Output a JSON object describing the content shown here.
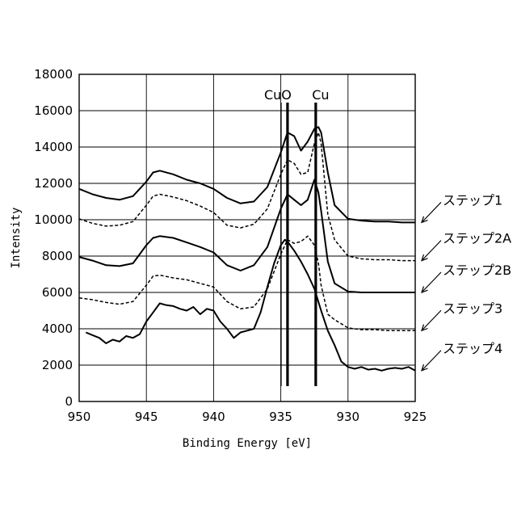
{
  "chart_data": {
    "type": "line",
    "xlabel": "Binding Energy [eV]",
    "ylabel": "Intensity",
    "xlim": [
      950,
      925
    ],
    "ylim": [
      0,
      18000
    ],
    "x_reversed": true,
    "grid": true,
    "xticks": [
      "950",
      "945",
      "940",
      "935",
      "930",
      "925"
    ],
    "yticks": [
      "0",
      "2000",
      "4000",
      "6000",
      "8000",
      "10000",
      "12000",
      "14000",
      "16000",
      "18000"
    ],
    "reference_lines": [
      {
        "label": "CuO",
        "x": 934.5
      },
      {
        "label": "Cu",
        "x": 932.4
      }
    ],
    "legend_placement": "right, with arrows",
    "series": [
      {
        "name": "ステップ1",
        "style": "solid",
        "x": [
          950,
          949,
          948,
          947,
          946,
          945,
          944.5,
          944,
          943,
          942,
          941,
          940,
          939,
          938,
          937,
          936,
          935,
          934.5,
          934,
          933.5,
          933,
          932.5,
          932.2,
          932,
          931.5,
          931,
          930,
          929,
          928,
          927,
          926,
          925
        ],
        "y": [
          11700,
          11400,
          11200,
          11100,
          11300,
          12100,
          12600,
          12700,
          12500,
          12200,
          12000,
          11700,
          11200,
          10900,
          11000,
          11800,
          13700,
          14800,
          14600,
          13800,
          14300,
          15000,
          15100,
          14800,
          12600,
          10800,
          10050,
          9950,
          9900,
          9900,
          9850,
          9850
        ]
      },
      {
        "name": "ステップ2A",
        "style": "dashed",
        "x": [
          950,
          949,
          948,
          947,
          946,
          945,
          944.5,
          944,
          943,
          942,
          941,
          940,
          939,
          938,
          937,
          936,
          935,
          934.5,
          934,
          933.5,
          933,
          932.5,
          932.2,
          932,
          931.5,
          931,
          930,
          929,
          928,
          927,
          926,
          925
        ],
        "y": [
          10050,
          9800,
          9650,
          9700,
          9900,
          10800,
          11300,
          11400,
          11250,
          11050,
          10750,
          10400,
          9700,
          9550,
          9750,
          10600,
          12500,
          13300,
          13100,
          12500,
          12600,
          14200,
          14800,
          14200,
          10300,
          8900,
          8000,
          7850,
          7800,
          7800,
          7750,
          7750
        ]
      },
      {
        "name": "ステップ2B",
        "style": "solid",
        "x": [
          950,
          949,
          948,
          947,
          946,
          945,
          944.5,
          944,
          943,
          942,
          941,
          940,
          939,
          938,
          937,
          936,
          935,
          934.5,
          934,
          933.5,
          933,
          932.5,
          932.2,
          932,
          931.5,
          931,
          930,
          929,
          928,
          927,
          926,
          925
        ],
        "y": [
          7950,
          7750,
          7500,
          7450,
          7600,
          8600,
          9000,
          9100,
          9000,
          8750,
          8500,
          8200,
          7500,
          7200,
          7500,
          8500,
          10600,
          11400,
          11100,
          10800,
          11100,
          12200,
          11500,
          10500,
          7700,
          6500,
          6050,
          6000,
          6000,
          6000,
          6000,
          6000
        ]
      },
      {
        "name": "ステップ3",
        "style": "dashed",
        "x": [
          950,
          949,
          948,
          947,
          946,
          945,
          944.5,
          944,
          943,
          942,
          941,
          940,
          939,
          938,
          937,
          936,
          935,
          934.5,
          934,
          933.5,
          933,
          932.5,
          932.2,
          932,
          931.5,
          931,
          930,
          929,
          928,
          927,
          926,
          925
        ],
        "y": [
          5700,
          5600,
          5450,
          5350,
          5500,
          6400,
          6900,
          6950,
          6800,
          6700,
          6500,
          6300,
          5500,
          5100,
          5200,
          6200,
          8100,
          8900,
          8700,
          8800,
          9100,
          8600,
          7600,
          6400,
          4800,
          4500,
          4050,
          3950,
          3950,
          3900,
          3900,
          3900
        ]
      },
      {
        "name": "ステップ4",
        "style": "solid",
        "x": [
          949.5,
          949,
          948.5,
          948,
          947.5,
          947,
          946.5,
          946,
          945.5,
          945,
          944.5,
          944,
          943.5,
          943,
          942.5,
          942,
          941.5,
          941,
          940.5,
          940,
          939.5,
          939,
          938.5,
          938,
          937.5,
          937,
          936.5,
          936,
          935.5,
          935,
          934.7,
          934.5,
          934,
          933.5,
          933,
          932.5,
          932,
          931.5,
          931,
          930.5,
          930,
          929.5,
          929,
          928.5,
          928,
          927.5,
          927,
          926.5,
          926,
          925.5,
          925
        ],
        "y": [
          3800,
          3650,
          3500,
          3200,
          3400,
          3300,
          3600,
          3500,
          3700,
          4400,
          4900,
          5400,
          5300,
          5250,
          5100,
          5000,
          5200,
          4800,
          5100,
          5000,
          4400,
          4000,
          3500,
          3800,
          3900,
          4000,
          4900,
          6300,
          7600,
          8600,
          8900,
          8800,
          8300,
          7700,
          7000,
          6200,
          5000,
          3900,
          3100,
          2200,
          1900,
          1800,
          1900,
          1750,
          1800,
          1700,
          1800,
          1850,
          1800,
          1900,
          1700
        ]
      }
    ]
  }
}
